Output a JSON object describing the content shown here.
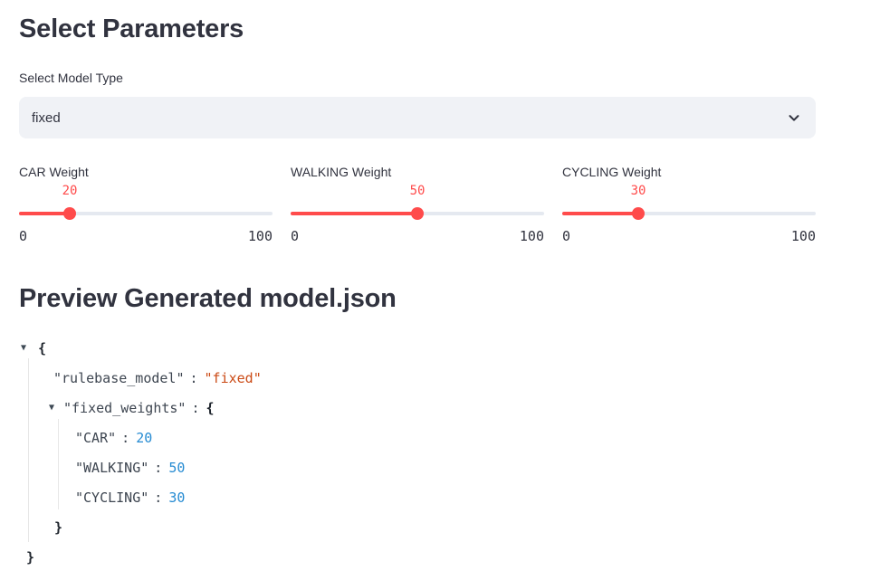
{
  "headings": {
    "select_parameters": "Select Parameters",
    "preview": "Preview Generated model.json"
  },
  "model_type": {
    "label": "Select Model Type",
    "value": "fixed"
  },
  "sliders": [
    {
      "label": "CAR Weight",
      "value": 20,
      "min": 0,
      "max": 100,
      "value_label": "20",
      "min_label": "0",
      "max_label": "100"
    },
    {
      "label": "WALKING Weight",
      "value": 50,
      "min": 0,
      "max": 100,
      "value_label": "50",
      "min_label": "0",
      "max_label": "100"
    },
    {
      "label": "CYCLING Weight",
      "value": 30,
      "min": 0,
      "max": 100,
      "value_label": "30",
      "min_label": "0",
      "max_label": "100"
    }
  ],
  "json_view": {
    "lines": [
      {
        "punct": "{"
      },
      {
        "key": "\"rulebase_model\"",
        "colon": ":",
        "value": "\"fixed\"",
        "value_type": "string"
      },
      {
        "key": "\"fixed_weights\"",
        "colon": ":",
        "punct": "{"
      },
      {
        "key": "\"CAR\"",
        "colon": ":",
        "value": "20",
        "value_type": "number"
      },
      {
        "key": "\"WALKING\"",
        "colon": ":",
        "value": "50",
        "value_type": "number"
      },
      {
        "key": "\"CYCLING\"",
        "colon": ":",
        "value": "30",
        "value_type": "number"
      },
      {
        "punct": "}"
      },
      {
        "punct": "}"
      }
    ],
    "collapse_arrow": "▼"
  },
  "colors": {
    "accent_red": "#ff4b4b",
    "text": "#31333f",
    "select_bg": "#f0f2f6",
    "json_string": "#cb4b16",
    "json_number": "#268bd2"
  }
}
